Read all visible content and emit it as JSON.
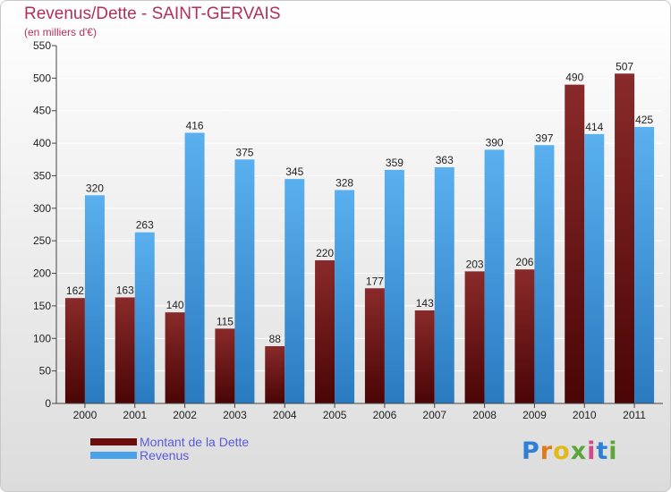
{
  "title": "Revenus/Dette - SAINT-GERVAIS",
  "subtitle": "(en milliers d'€)",
  "logo": {
    "text": "Proxiti",
    "letter_colors": [
      "#2e7fd6",
      "#e07b1a",
      "#e0b91a",
      "#5aa63a",
      "#d04a8a",
      "#2e7fd6",
      "#5aa63a"
    ]
  },
  "chart_data": {
    "type": "bar",
    "categories": [
      "2000",
      "2001",
      "2002",
      "2003",
      "2004",
      "2005",
      "2006",
      "2007",
      "2008",
      "2009",
      "2010",
      "2011"
    ],
    "series": [
      {
        "name": "Montant de la Dette",
        "color": "#7a1a1a",
        "values": [
          162,
          163,
          140,
          115,
          88,
          220,
          177,
          143,
          203,
          206,
          490,
          507
        ]
      },
      {
        "name": "Revenus",
        "color": "#4aa3e8",
        "values": [
          320,
          263,
          416,
          375,
          345,
          328,
          359,
          363,
          390,
          397,
          414,
          425
        ]
      }
    ],
    "ylim": [
      0,
      550
    ],
    "yticks": [
      0,
      50,
      100,
      150,
      200,
      250,
      300,
      350,
      400,
      450,
      500,
      550
    ],
    "grid": true,
    "legend": "bottom-left"
  }
}
